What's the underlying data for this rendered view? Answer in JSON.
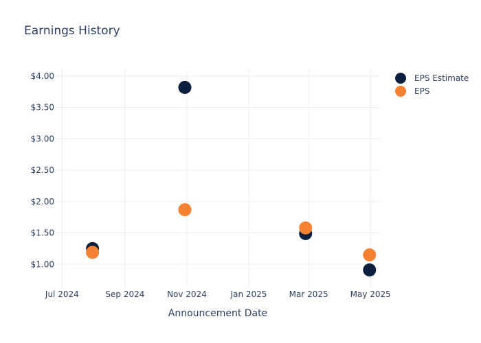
{
  "chart_data": {
    "type": "scatter",
    "title": "Earnings History",
    "xlabel": "Announcement Date",
    "ylabel": "",
    "x_ticks": [
      "Jul 2024",
      "Sep 2024",
      "Nov 2024",
      "Jan 2025",
      "Mar 2025",
      "May 2025"
    ],
    "x_tick_dates": [
      "2024-07-01",
      "2024-09-01",
      "2024-11-01",
      "2025-01-01",
      "2025-03-01",
      "2025-05-01"
    ],
    "y_ticks": [
      "$1.00",
      "$1.50",
      "$2.00",
      "$2.50",
      "$3.00",
      "$3.50",
      "$4.00"
    ],
    "y_tick_values": [
      1.0,
      1.5,
      2.0,
      2.5,
      3.0,
      3.5,
      4.0
    ],
    "xlim": [
      "2024-06-24",
      "2025-05-11"
    ],
    "ylim": [
      0.62,
      4.12
    ],
    "grid": true,
    "legend_position": "top-right",
    "series": [
      {
        "name": "EPS Estimate",
        "color": "#0b1f3f",
        "points": [
          {
            "x": "2024-07-31",
            "y": 1.25
          },
          {
            "x": "2024-10-30",
            "y": 3.82
          },
          {
            "x": "2025-02-26",
            "y": 1.49
          },
          {
            "x": "2025-04-30",
            "y": 0.91
          }
        ]
      },
      {
        "name": "EPS",
        "color": "#f58232",
        "points": [
          {
            "x": "2024-07-31",
            "y": 1.19
          },
          {
            "x": "2024-10-30",
            "y": 1.87
          },
          {
            "x": "2025-02-26",
            "y": 1.58
          },
          {
            "x": "2025-04-30",
            "y": 1.15
          }
        ]
      }
    ]
  }
}
